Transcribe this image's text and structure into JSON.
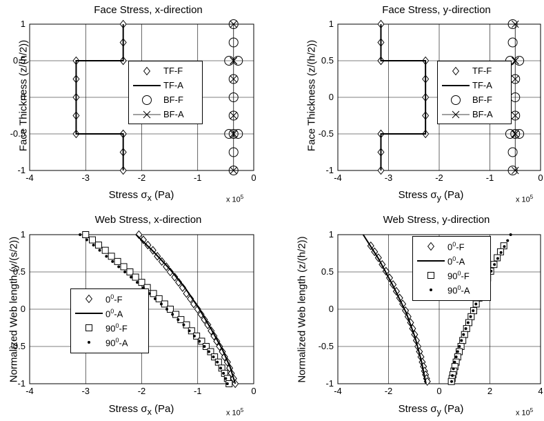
{
  "chart_data": [
    {
      "type": "line",
      "title": "Face Stress, x-direction",
      "xlabel_main": "Stress σ",
      "xlabel_sub": "x",
      "xlabel_unit": " (Pa)",
      "ylabel": "Face Thickness (z/(h/2))",
      "multiplier": "x 10",
      "multiplier_exp": "5",
      "xlim": [
        -4,
        0
      ],
      "ylim": [
        -1,
        1
      ],
      "xticks": [
        "-4",
        "-3",
        "-2",
        "-1",
        "0"
      ],
      "yticks": [
        "-1",
        "-0.5",
        "0",
        "0.5",
        "1"
      ],
      "grid": true,
      "legend_placement": "center-right",
      "legend": [
        {
          "label": "TF-F",
          "marker": "diamond",
          "line": "none"
        },
        {
          "label": "TF-A",
          "marker": "none",
          "line": "thick"
        },
        {
          "label": "BF-F",
          "marker": "circle",
          "line": "none"
        },
        {
          "label": "BF-A",
          "marker": "x",
          "line": "thin"
        }
      ],
      "series": [
        {
          "name": "TF-F",
          "marker": "diamond",
          "line": "none",
          "x": [
            -2.33,
            -2.33,
            -2.33,
            -2.33,
            -3.17,
            -3.17,
            -3.17,
            -3.17,
            -3.17,
            -2.33,
            -2.33,
            -2.33,
            -2.33
          ],
          "y": [
            1,
            0.75,
            0.5,
            0.5,
            0.5,
            0.25,
            0,
            -0.25,
            -0.5,
            -0.5,
            -0.5,
            -0.75,
            -1
          ]
        },
        {
          "name": "TF-A",
          "marker": "none",
          "line": "thick",
          "x": [
            -2.33,
            -2.33,
            -3.17,
            -3.17,
            -2.33,
            -2.33
          ],
          "y": [
            1,
            0.5,
            0.5,
            -0.5,
            -0.5,
            -1
          ]
        },
        {
          "name": "BF-F",
          "marker": "circle",
          "line": "none",
          "x": [
            -0.36,
            -0.36,
            -0.44,
            -0.28,
            -0.36,
            -0.36,
            -0.36,
            -0.36,
            -0.44,
            -0.28,
            -0.36,
            -0.36
          ],
          "y": [
            1,
            0.75,
            0.5,
            0.5,
            0.25,
            0,
            -0.25,
            -0.5,
            -0.5,
            -0.5,
            -0.75,
            -1
          ]
        },
        {
          "name": "BF-A",
          "marker": "x",
          "line": "thin",
          "x": [
            -0.36,
            -0.36,
            -0.36,
            -0.36,
            -0.36,
            -0.36,
            -0.36,
            -0.36,
            -0.36,
            -0.36
          ],
          "y": [
            1,
            0.5,
            0.5,
            0.5,
            0.25,
            -0.25,
            -0.5,
            -0.5,
            -0.5,
            -1
          ]
        }
      ]
    },
    {
      "type": "line",
      "title": "Face Stress, y-direction",
      "xlabel_main": "Stress σ",
      "xlabel_sub": "y",
      "xlabel_unit": " (Pa)",
      "ylabel": "Face Thickness (z/(h/2))",
      "multiplier": "x 10",
      "multiplier_exp": "5",
      "xlim": [
        -4,
        0
      ],
      "ylim": [
        -1,
        1
      ],
      "xticks": [
        "-4",
        "-3",
        "-2",
        "-1",
        "0"
      ],
      "yticks": [
        "-1",
        "-0.5",
        "0",
        "0.5",
        "1"
      ],
      "grid": true,
      "legend_placement": "center-right",
      "legend": [
        {
          "label": "TF-F",
          "marker": "diamond",
          "line": "none"
        },
        {
          "label": "TF-A",
          "marker": "none",
          "line": "thick"
        },
        {
          "label": "BF-F",
          "marker": "circle",
          "line": "none"
        },
        {
          "label": "BF-A",
          "marker": "x",
          "line": "thin"
        }
      ],
      "series": [
        {
          "name": "TF-F",
          "marker": "diamond",
          "line": "none",
          "x": [
            -3.15,
            -3.15,
            -3.15,
            -3.15,
            -2.27,
            -2.27,
            -2.27,
            -2.27,
            -2.27,
            -3.15,
            -3.15,
            -3.15,
            -3.15
          ],
          "y": [
            1,
            0.75,
            0.5,
            0.5,
            0.5,
            0.25,
            0,
            -0.25,
            -0.5,
            -0.5,
            -0.5,
            -0.75,
            -1
          ]
        },
        {
          "name": "TF-A",
          "marker": "none",
          "line": "thick",
          "x": [
            -3.15,
            -3.15,
            -2.27,
            -2.27,
            -3.15,
            -3.15
          ],
          "y": [
            1,
            0.5,
            0.5,
            -0.5,
            -0.5,
            -1
          ]
        },
        {
          "name": "BF-F",
          "marker": "circle",
          "line": "none",
          "x": [
            -0.55,
            -0.55,
            -0.6,
            -0.42,
            -0.5,
            -0.5,
            -0.5,
            -0.5,
            -0.6,
            -0.42,
            -0.55,
            -0.55
          ],
          "y": [
            1,
            0.75,
            0.5,
            0.5,
            0.25,
            0,
            -0.25,
            -0.5,
            -0.5,
            -0.5,
            -0.75,
            -1
          ]
        },
        {
          "name": "BF-A",
          "marker": "x",
          "line": "thin",
          "x": [
            -0.5,
            -0.5,
            -0.5,
            -0.5,
            -0.5,
            -0.5,
            -0.5,
            -0.5,
            -0.5,
            -0.5
          ],
          "y": [
            1,
            0.5,
            0.5,
            0.5,
            0.25,
            -0.25,
            -0.5,
            -0.5,
            -0.5,
            -1
          ]
        }
      ]
    },
    {
      "type": "line",
      "title": "Web Stress, x-direction",
      "xlabel_main": "Stress σ",
      "xlabel_sub": "x",
      "xlabel_unit": " (Pa)",
      "ylabel": "Normalized Web length (y/(s/2))",
      "multiplier": "x 10",
      "multiplier_exp": "5",
      "xlim": [
        -4,
        0
      ],
      "ylim": [
        -1,
        1
      ],
      "xticks": [
        "-4",
        "-3",
        "-2",
        "-1",
        "0"
      ],
      "yticks": [
        "-1",
        "-0.5",
        "0",
        "0.5",
        "1"
      ],
      "grid": true,
      "legend_placement": "bottom-left",
      "legend": [
        {
          "label": "0",
          "sup": "0",
          "suffix": "-F",
          "marker": "diamond",
          "line": "none"
        },
        {
          "label": "0",
          "sup": "0",
          "suffix": "-A",
          "marker": "none",
          "line": "thick"
        },
        {
          "label": "90",
          "sup": "0",
          "suffix": "-F",
          "marker": "square",
          "line": "none"
        },
        {
          "label": "90",
          "sup": "0",
          "suffix": "-A",
          "marker": "dot",
          "line": "none"
        }
      ],
      "series": [
        {
          "name": "0-F",
          "marker": "diamond",
          "line": "none",
          "x": [
            -2.05,
            -1.97,
            -1.89,
            -1.8,
            -1.72,
            -1.64,
            -1.56,
            -1.49,
            -1.41,
            -1.34,
            -1.27,
            -1.2,
            -1.13,
            -1.07,
            -1.0,
            -0.94,
            -0.88,
            -0.82,
            -0.76,
            -0.71,
            -0.66,
            -0.61,
            -0.56,
            -0.52,
            -0.47,
            -0.43,
            -0.4,
            -0.36,
            -0.33
          ],
          "y": [
            1.0,
            0.93,
            0.86,
            0.79,
            0.71,
            0.64,
            0.57,
            0.5,
            0.43,
            0.36,
            0.29,
            0.21,
            0.14,
            0.07,
            0.0,
            -0.07,
            -0.14,
            -0.21,
            -0.29,
            -0.36,
            -0.43,
            -0.5,
            -0.57,
            -0.64,
            -0.71,
            -0.79,
            -0.86,
            -0.93,
            -1.0
          ]
        },
        {
          "name": "0-A",
          "marker": "none",
          "line": "thick",
          "x": [
            -2.1,
            -1.8,
            -1.5,
            -1.22,
            -0.97,
            -0.75,
            -0.56,
            -0.42,
            -0.33
          ],
          "y": [
            1.0,
            0.78,
            0.54,
            0.28,
            0.0,
            -0.28,
            -0.54,
            -0.78,
            -1.0
          ]
        },
        {
          "name": "90-F",
          "marker": "square",
          "line": "none",
          "x": [
            -3.0,
            -2.88,
            -2.77,
            -2.65,
            -2.54,
            -2.43,
            -2.32,
            -2.21,
            -2.11,
            -2.0,
            -1.9,
            -1.79,
            -1.69,
            -1.59,
            -1.49,
            -1.39,
            -1.3,
            -1.2,
            -1.11,
            -1.02,
            -0.93,
            -0.85,
            -0.77,
            -0.7,
            -0.63,
            -0.57,
            -0.52,
            -0.47,
            -0.44
          ],
          "y": [
            1.0,
            0.93,
            0.86,
            0.79,
            0.71,
            0.64,
            0.57,
            0.5,
            0.43,
            0.36,
            0.29,
            0.21,
            0.14,
            0.07,
            0.0,
            -0.07,
            -0.14,
            -0.21,
            -0.29,
            -0.36,
            -0.43,
            -0.5,
            -0.57,
            -0.64,
            -0.71,
            -0.79,
            -0.86,
            -0.93,
            -1.0
          ]
        },
        {
          "name": "90-A",
          "marker": "dot",
          "line": "none",
          "x": [
            -3.1,
            -2.98,
            -2.86,
            -2.75,
            -2.63,
            -2.52,
            -2.41,
            -2.3,
            -2.19,
            -2.08,
            -1.97,
            -1.86,
            -1.76,
            -1.65,
            -1.55,
            -1.45,
            -1.35,
            -1.25,
            -1.15,
            -1.06,
            -0.97,
            -0.88,
            -0.8,
            -0.72,
            -0.65,
            -0.59,
            -0.54,
            -0.5,
            -0.47
          ],
          "y": [
            1.0,
            0.93,
            0.86,
            0.79,
            0.71,
            0.64,
            0.57,
            0.5,
            0.43,
            0.36,
            0.29,
            0.21,
            0.14,
            0.07,
            0.0,
            -0.07,
            -0.14,
            -0.21,
            -0.29,
            -0.36,
            -0.43,
            -0.5,
            -0.57,
            -0.64,
            -0.71,
            -0.79,
            -0.86,
            -0.93,
            -1.0
          ]
        }
      ]
    },
    {
      "type": "line",
      "title": "Web Stress, y-direction",
      "xlabel_main": "Stress σ",
      "xlabel_sub": "y",
      "xlabel_unit": " (Pa)",
      "ylabel": "Normalized Web length (z/(h/2))",
      "multiplier": "x 10",
      "multiplier_exp": "5",
      "xlim": [
        -4,
        4
      ],
      "ylim": [
        -1,
        1
      ],
      "xticks": [
        "-4",
        "-2",
        "0",
        "2",
        "4"
      ],
      "yticks": [
        "-1",
        "-0.5",
        "0",
        "0.5",
        "1"
      ],
      "grid": true,
      "legend_placement": "top-center",
      "legend": [
        {
          "label": "0",
          "sup": "0",
          "suffix": "-F",
          "marker": "diamond",
          "line": "none"
        },
        {
          "label": "0",
          "sup": "0",
          "suffix": "-A",
          "marker": "none",
          "line": "thick"
        },
        {
          "label": "90",
          "sup": "0",
          "suffix": "-F",
          "marker": "square",
          "line": "none"
        },
        {
          "label": "90",
          "sup": "0",
          "suffix": "-A",
          "marker": "dot",
          "line": "none"
        }
      ],
      "series": [
        {
          "name": "0-F",
          "marker": "diamond",
          "line": "none",
          "x": [
            -2.7,
            -2.55,
            -2.4,
            -2.25,
            -2.1,
            -1.96,
            -1.82,
            -1.69,
            -1.56,
            -1.44,
            -1.33,
            -1.23,
            -1.13,
            -1.05,
            -0.97,
            -0.9,
            -0.84,
            -0.78,
            -0.72,
            -0.67,
            -0.62,
            -0.58,
            -0.54,
            -0.5,
            -0.47
          ],
          "y": [
            0.85,
            0.77,
            0.69,
            0.6,
            0.51,
            0.42,
            0.33,
            0.24,
            0.15,
            0.07,
            -0.02,
            -0.1,
            -0.18,
            -0.26,
            -0.34,
            -0.42,
            -0.5,
            -0.57,
            -0.64,
            -0.71,
            -0.77,
            -0.83,
            -0.88,
            -0.93,
            -0.97
          ]
        },
        {
          "name": "0-A",
          "marker": "none",
          "line": "thick",
          "x": [
            -3.0,
            -2.4,
            -1.8,
            -1.3,
            -0.95,
            -0.7,
            -0.52
          ],
          "y": [
            1.0,
            0.68,
            0.3,
            -0.05,
            -0.38,
            -0.7,
            -1.0
          ]
        },
        {
          "name": "90-F",
          "marker": "square",
          "line": "none",
          "x": [
            2.55,
            2.42,
            2.29,
            2.16,
            2.03,
            1.91,
            1.79,
            1.68,
            1.57,
            1.46,
            1.36,
            1.26,
            1.17,
            1.08,
            1.0,
            0.93,
            0.86,
            0.79,
            0.73,
            0.67,
            0.62,
            0.58,
            0.54,
            0.51,
            0.48
          ],
          "y": [
            0.85,
            0.77,
            0.69,
            0.6,
            0.51,
            0.42,
            0.33,
            0.24,
            0.15,
            0.07,
            -0.02,
            -0.1,
            -0.18,
            -0.26,
            -0.34,
            -0.42,
            -0.5,
            -0.57,
            -0.64,
            -0.71,
            -0.77,
            -0.83,
            -0.88,
            -0.93,
            -0.97
          ]
        },
        {
          "name": "90-A",
          "marker": "dot",
          "line": "none",
          "x": [
            2.82,
            2.7,
            2.57,
            2.44,
            2.31,
            2.18,
            2.05,
            1.92,
            1.8,
            1.68,
            1.56,
            1.45,
            1.34,
            1.24,
            1.14,
            1.05,
            0.96,
            0.88,
            0.8,
            0.73,
            0.67,
            0.61,
            0.56,
            0.52,
            0.49
          ],
          "y": [
            1.0,
            0.92,
            0.84,
            0.76,
            0.68,
            0.6,
            0.51,
            0.42,
            0.33,
            0.24,
            0.15,
            0.07,
            -0.02,
            -0.1,
            -0.18,
            -0.26,
            -0.34,
            -0.42,
            -0.5,
            -0.57,
            -0.64,
            -0.71,
            -0.8,
            -0.89,
            -0.97
          ]
        }
      ]
    }
  ]
}
